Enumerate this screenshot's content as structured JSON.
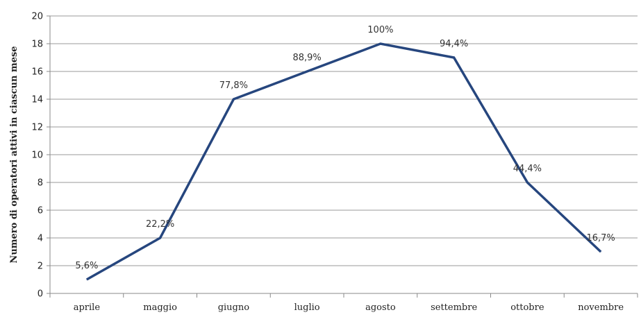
{
  "chart_data": {
    "type": "line",
    "title": "",
    "xlabel": "",
    "ylabel": "Numero di operatori attivi in ciascun mese",
    "categories": [
      "aprile",
      "maggio",
      "giugno",
      "luglio",
      "agosto",
      "settembre",
      "ottobre",
      "novembre"
    ],
    "series": [
      {
        "values": [
          1,
          4,
          14,
          16,
          18,
          17,
          8,
          3
        ],
        "labels": [
          "5,6%",
          "22,2%",
          "77,8%",
          "88,9%",
          "100%",
          "94,4%",
          "44,4%",
          "16,7%"
        ]
      }
    ],
    "ylim": [
      0,
      20
    ],
    "yticks": [
      "0",
      "2",
      "4",
      "6",
      "8",
      "10",
      "12",
      "14",
      "16",
      "18",
      "20"
    ],
    "grid": true,
    "legend": "none",
    "line_color": "#26467E"
  }
}
